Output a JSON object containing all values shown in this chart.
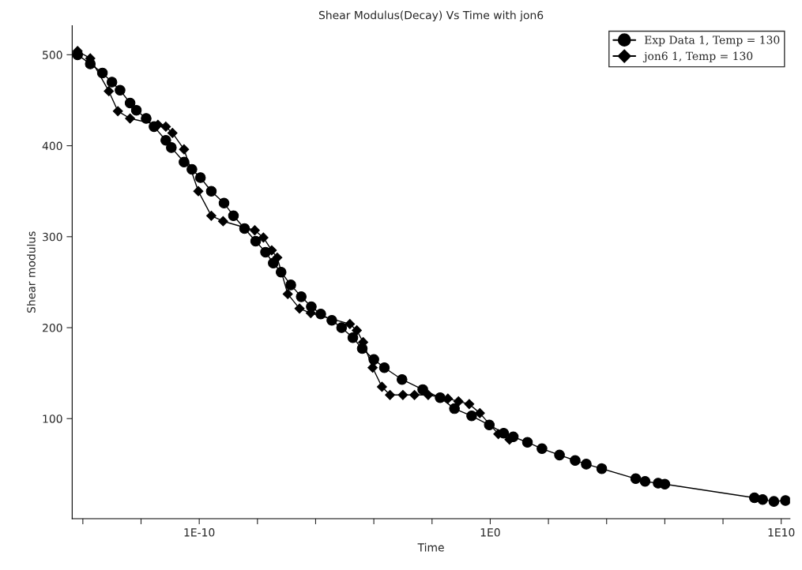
{
  "chart_data": {
    "type": "line",
    "title": "Shear Modulus(Decay) Vs Time with jon6",
    "xlabel": "Time",
    "ylabel": "Shear modulus",
    "log": "x",
    "xlim": [
      4.3e-15,
      20000000000.0
    ],
    "ylim": [
      -10,
      532
    ],
    "xticks": [
      {
        "value": 1e-14,
        "label": null
      },
      {
        "value": 1e-12,
        "label": null
      },
      {
        "value": 1e-10,
        "label": "1E-10"
      },
      {
        "value": 1e-08,
        "label": null
      },
      {
        "value": 1e-06,
        "label": null
      },
      {
        "value": 0.0001,
        "label": null
      },
      {
        "value": 0.01,
        "label": null
      },
      {
        "value": 1,
        "label": "1E0"
      },
      {
        "value": 100,
        "label": null
      },
      {
        "value": 10000,
        "label": null
      },
      {
        "value": 1000000,
        "label": null
      },
      {
        "value": 100000000,
        "label": null
      },
      {
        "value": 10000000000,
        "label": "1E10"
      }
    ],
    "yticks": [
      100,
      200,
      300,
      400,
      500
    ],
    "grid": false,
    "legend": "top right",
    "series": [
      {
        "name": "Exp Data 1, Temp = 130",
        "color": "#000000",
        "marker": "circle",
        "x": [
          6.6e-15,
          1.8e-14,
          4.7e-14,
          1e-13,
          1.9e-13,
          4.2e-13,
          6.9e-13,
          1.5e-12,
          2.8e-12,
          7.1e-12,
          1.1e-11,
          3e-11,
          5.6e-11,
          1.1e-10,
          2.6e-10,
          7.1e-10,
          1.5e-09,
          3.6e-09,
          8.7e-09,
          1.9e-08,
          3.5e-08,
          6.5e-08,
          1.4e-07,
          3.2e-07,
          7.1e-07,
          1.5e-06,
          3.6e-06,
          7.8e-06,
          1.9e-05,
          4e-05,
          0.0001,
          0.00023,
          0.00093,
          0.0048,
          0.019,
          0.059,
          0.23,
          0.93,
          2.9,
          6.2,
          19,
          60,
          240,
          830,
          2000,
          6800,
          100000.0,
          210000.0,
          590000.0,
          1000000.0,
          1200000000.0,
          2300000000.0,
          5600000000.0,
          14000000000.0
        ],
        "values": [
          500,
          490,
          480,
          470,
          461,
          447,
          439,
          430,
          421,
          406,
          398,
          382,
          374,
          365,
          350,
          337,
          323,
          309,
          295,
          283,
          271,
          261,
          247,
          234,
          223,
          215,
          208,
          200,
          189,
          177,
          165,
          156,
          143,
          132,
          123,
          111,
          103,
          93,
          84,
          80,
          74,
          67,
          60,
          54,
          50,
          45,
          34,
          31,
          29,
          28,
          13,
          11,
          9,
          10
        ]
      },
      {
        "name": "jon6 1, Temp = 130",
        "color": "#000000",
        "marker": "diamond",
        "x": [
          6.6e-15,
          1.8e-14,
          7.8e-14,
          1.6e-13,
          4.2e-13,
          3.8e-12,
          7.1e-12,
          1.2e-11,
          3e-11,
          9.3e-11,
          2.6e-10,
          6.6e-10,
          8.1e-09,
          1.6e-08,
          3.1e-08,
          4.8e-08,
          1.1e-07,
          2.8e-07,
          6.8e-07,
          1.5e-05,
          2.6e-05,
          4.3e-05,
          9.1e-05,
          0.00019,
          0.00036,
          0.001,
          0.0025,
          0.0074,
          0.035,
          0.081,
          0.19,
          0.44,
          1.9,
          4.6
        ],
        "values": [
          504,
          496,
          460,
          438,
          430,
          423,
          421,
          414,
          396,
          350,
          323,
          317,
          307,
          299,
          285,
          277,
          237,
          221,
          216,
          204,
          197,
          184,
          156,
          135,
          126,
          126,
          126,
          126,
          122,
          119,
          116,
          106,
          83,
          77
        ]
      }
    ]
  }
}
